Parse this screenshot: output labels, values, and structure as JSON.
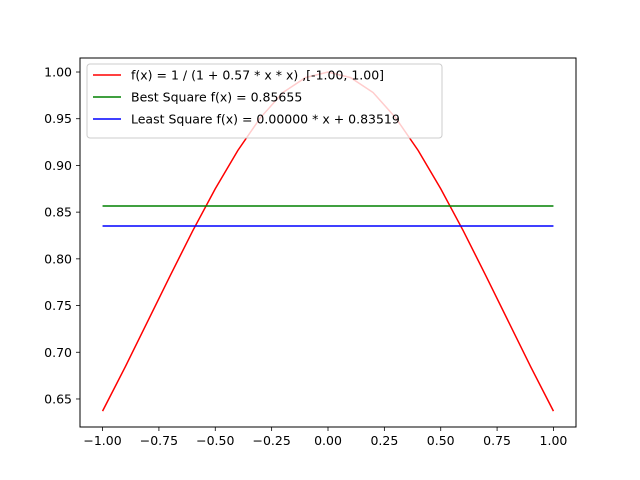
{
  "chart_data": {
    "type": "line",
    "xlim": [
      -1.1,
      1.1
    ],
    "ylim": [
      0.62,
      1.015
    ],
    "x_ticks": [
      -1.0,
      -0.75,
      -0.5,
      -0.25,
      0.0,
      0.25,
      0.5,
      0.75,
      1.0
    ],
    "x_tick_labels": [
      "−1.00",
      "−0.75",
      "−0.50",
      "−0.25",
      "0.00",
      "0.25",
      "0.50",
      "0.75",
      "1.00"
    ],
    "y_ticks": [
      0.65,
      0.7,
      0.75,
      0.8,
      0.85,
      0.9,
      0.95,
      1.0
    ],
    "y_tick_labels": [
      "0.65",
      "0.70",
      "0.75",
      "0.80",
      "0.85",
      "0.90",
      "0.95",
      "1.00"
    ],
    "grid": false,
    "legend_position": "upper-left",
    "series": [
      {
        "name": "f(x) = 1 / (1 + 0.57 * x * x) ,[-1.00, 1.00]",
        "color": "#ff0000",
        "x": [
          -1.0,
          -0.9,
          -0.8,
          -0.7,
          -0.6,
          -0.5,
          -0.4,
          -0.3,
          -0.2,
          -0.1,
          0.0,
          0.1,
          0.2,
          0.3,
          0.4,
          0.5,
          0.6,
          0.7,
          0.8,
          0.9,
          1.0
        ],
        "y": [
          0.637,
          0.684,
          0.733,
          0.782,
          0.83,
          0.875,
          0.916,
          0.951,
          0.978,
          0.994,
          1.0,
          0.994,
          0.978,
          0.951,
          0.916,
          0.875,
          0.83,
          0.782,
          0.733,
          0.684,
          0.637
        ]
      },
      {
        "name": "Best Square f(x) = 0.85655",
        "color": "#008000",
        "x": [
          -1.0,
          1.0
        ],
        "y": [
          0.85655,
          0.85655
        ]
      },
      {
        "name": "Least Square f(x) = 0.00000 * x  + 0.83519",
        "color": "#0000ff",
        "x": [
          -1.0,
          1.0
        ],
        "y": [
          0.83519,
          0.83519
        ]
      }
    ]
  }
}
